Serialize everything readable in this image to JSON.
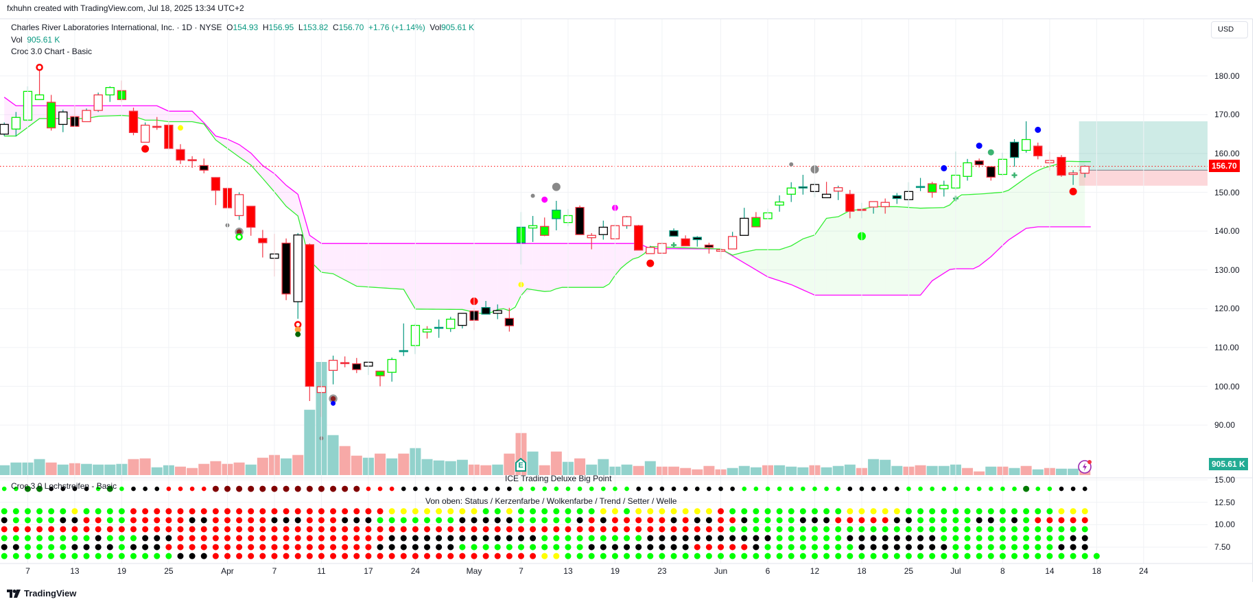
{
  "attribution": "fxhuhn created with TradingView.com, Jul 18, 2025 13:34 UTC+2",
  "legend": {
    "symbol": "Charles River Laboratories International, Inc. · 1D · NYSE",
    "o_label": "O",
    "o": "154.93",
    "h_label": "H",
    "h": "156.95",
    "l_label": "L",
    "l": "153.82",
    "c_label": "C",
    "c": "156.70",
    "change": "+1.76 (+1.14%)",
    "vol_label": "Vol",
    "vol": "905.61 K"
  },
  "legend_vol": {
    "label": "Vol",
    "value": "905.61 K"
  },
  "indicator_main": "Croc 3.0 Chart - Basic",
  "currency": "USD",
  "last_price_badge": "156.70",
  "volume_badge": "905.61 K",
  "earnings_icon_label": "E",
  "lower_pane": {
    "title": "Croc 3.0 Lochstreifen - Basic",
    "ice_label": "ICE Trading Deluxe Big Point",
    "legend": "Von oben: Status / Kerzenfarbe / Wolkenfarbe / Trend / Setter / Welle",
    "ticks": [
      {
        "v": 15,
        "label": "15.00"
      },
      {
        "v": 12.5,
        "label": "12.50"
      },
      {
        "v": 10,
        "label": "10.00"
      },
      {
        "v": 7.5,
        "label": "7.50"
      }
    ],
    "row_levels": [
      14.0,
      11.5,
      10.5,
      9.5,
      8.5,
      7.5,
      6.5
    ],
    "rows": [
      "GGDDKKKKGDGKKKRRRRMMMMMMMMMMMMMRRRKKKKKKKKKKGGGGGGGGGGKKKKKKKKKGGGGGGGGGKKKKKGGGGGGGGGGDGGKKK",
      "GGGGGGYGGGGRRRRRRRRRRRRRRRRRRRRRRYYYYYYYYGGYGGGGGGGYYGYYYYYYYRGGGGGGGGGGYYYYYGGGGGGGGGGGGGYYY",
      "KGGGGKKRRGGRRRRRKKRRRRRKKKRRRKKKGGGGGGGKKKKKGGGGGKRKRRRRRKRKKRRKGGGGKKKRRRRRKKGGGGGKKGKGRRRRR",
      "RRRRRRRRRRRRRRRRRRRRRRRRRRRRRRRRRRRRRRRRRRRRRRRRRRRRRRRRRRRRRRGGGGGGGGGGGGGGGGGGGGGGGGGGGGGGG",
      "GGGGGGGGKGGGKKKRRRRRRRRRRRRRRRRRRKKKKKKKKKKKKKGGGGGGGGGKKKKKKKKKKKGGGGGGKKKKKKKKGGGGGGGGGGGKK",
      "KKGGGGKKKKGKKKRRRRRRRRRRRRRRRRRRKKKKKKKGGGGGGGGGGGKKKKKKKKKRRRRRKGGGGGGGGKKKKKKKKGGGGGGGGGKKK",
      "GGGGGGGGGGGGGGGKKKRRRRRRRRRRRRRRRRRRRRRRRRRRRRYYGGGGGGGGGGGGGGGGGGGGGGGGGGGGGGGGGGGGGGGGGGGGGG"
    ]
  },
  "footer": {
    "brand": "TradingView"
  },
  "colors": {
    "up": "#089981",
    "down": "#f23645",
    "lime": "#00ff00",
    "red": "#ff0000",
    "cloud_upper": "#ff00ff",
    "cloud_lower": "#33ee33",
    "vol_up": "#92d2cc",
    "vol_down": "#f7a9a7",
    "volume_badge": "#22ab94",
    "price_badge": "#ff0000"
  },
  "chart_data": {
    "type": "candlestick",
    "symbol": "CRL",
    "price_ticks": [
      90,
      100,
      110,
      120,
      130,
      140,
      150,
      160,
      170,
      180
    ],
    "last_price": 156.7,
    "x_labels": [
      {
        "label": "7",
        "i": 2
      },
      {
        "label": "13",
        "i": 6
      },
      {
        "label": "19",
        "i": 10
      },
      {
        "label": "25",
        "i": 14
      },
      {
        "label": "Apr",
        "i": 19
      },
      {
        "label": "7",
        "i": 23
      },
      {
        "label": "11",
        "i": 27
      },
      {
        "label": "17",
        "i": 31
      },
      {
        "label": "24",
        "i": 35
      },
      {
        "label": "May",
        "i": 40
      },
      {
        "label": "7",
        "i": 44
      },
      {
        "label": "13",
        "i": 48
      },
      {
        "label": "19",
        "i": 52
      },
      {
        "label": "23",
        "i": 56
      },
      {
        "label": "Jun",
        "i": 61
      },
      {
        "label": "6",
        "i": 65
      },
      {
        "label": "12",
        "i": 69
      },
      {
        "label": "18",
        "i": 73
      },
      {
        "label": "25",
        "i": 77
      },
      {
        "label": "Jul",
        "i": 81
      },
      {
        "label": "8",
        "i": 85
      },
      {
        "label": "14",
        "i": 89
      },
      {
        "label": "18",
        "i": 93
      },
      {
        "label": "24",
        "i": 97
      }
    ],
    "candles_ohlc_style": [
      [
        165.0,
        168.0,
        164.5,
        167.5,
        "WK"
      ],
      [
        166.3,
        170.7,
        164.4,
        169.3,
        "WG"
      ],
      [
        168.6,
        177.3,
        168.2,
        176.0,
        "WG"
      ],
      [
        175.1,
        181.6,
        173.9,
        173.9,
        "WG"
      ],
      [
        173.2,
        175.1,
        165.9,
        166.6,
        "GR"
      ],
      [
        167.5,
        171.3,
        165.5,
        170.7,
        "WK"
      ],
      [
        169.5,
        172.2,
        167.0,
        167.0,
        "KR"
      ],
      [
        168.2,
        171.6,
        168.2,
        171.1,
        "WR"
      ],
      [
        171.1,
        175.7,
        170.7,
        175.1,
        "WR"
      ],
      [
        175.1,
        177.3,
        173.3,
        177.0,
        "WG"
      ],
      [
        176.2,
        178.8,
        173.3,
        173.9,
        "GR"
      ],
      [
        170.9,
        171.8,
        164.7,
        165.4,
        "RR"
      ],
      [
        162.9,
        168.0,
        162.9,
        167.3,
        "WR"
      ],
      [
        167.0,
        169.4,
        166.1,
        166.9,
        "RR"
      ],
      [
        167.3,
        168.0,
        161.0,
        161.3,
        "RR"
      ],
      [
        161.0,
        162.4,
        157.3,
        158.3,
        "RR"
      ],
      [
        158.4,
        159.3,
        156.3,
        158.3,
        "RR"
      ],
      [
        156.9,
        158.7,
        154.9,
        155.7,
        "KR"
      ],
      [
        153.8,
        153.9,
        146.7,
        150.5,
        "RR"
      ],
      [
        151.0,
        151.3,
        146.0,
        146.0,
        "RR"
      ],
      [
        144.0,
        150.0,
        142.9,
        149.4,
        "WR"
      ],
      [
        146.4,
        146.4,
        138.8,
        141.0,
        "RR"
      ],
      [
        138.1,
        140.3,
        133.2,
        137.0,
        "RR"
      ],
      [
        134.1,
        139.3,
        128.3,
        133.0,
        "WK"
      ],
      [
        136.9,
        138.1,
        122.2,
        123.8,
        "KR"
      ],
      [
        121.8,
        139.5,
        117.4,
        139.0,
        "WK"
      ],
      [
        136.5,
        136.8,
        96.2,
        100.0,
        "RR"
      ],
      [
        99.9,
        101.5,
        92.1,
        98.4,
        "WR"
      ],
      [
        104.1,
        107.9,
        100.5,
        106.7,
        "WR"
      ],
      [
        106.1,
        107.7,
        104.9,
        106.0,
        "RR"
      ],
      [
        105.8,
        107.3,
        103.4,
        104.3,
        "KR"
      ],
      [
        105.2,
        106.4,
        102.9,
        106.2,
        "WK"
      ],
      [
        103.9,
        103.9,
        100.0,
        102.7,
        "GR"
      ],
      [
        103.6,
        107.4,
        101.2,
        106.9,
        "WG"
      ],
      [
        109.1,
        116.2,
        107.8,
        109.2,
        "TT"
      ],
      [
        110.5,
        116.2,
        108.3,
        115.7,
        "WG"
      ],
      [
        114.7,
        115.5,
        112.3,
        114.0,
        "WG"
      ],
      [
        115.1,
        117.2,
        112.5,
        115.2,
        "TT"
      ],
      [
        114.9,
        117.9,
        114.0,
        117.3,
        "WG"
      ],
      [
        115.7,
        118.8,
        114.9,
        118.8,
        "WK"
      ],
      [
        119.4,
        120.2,
        114.5,
        117.0,
        "KR"
      ],
      [
        118.6,
        122.0,
        118.6,
        120.3,
        "KT"
      ],
      [
        118.8,
        121.1,
        117.3,
        119.5,
        "WK"
      ],
      [
        117.5,
        120.2,
        114.1,
        115.6,
        "KR"
      ],
      [
        137.0,
        144.9,
        131.4,
        141.0,
        "GT"
      ],
      [
        140.8,
        143.9,
        137.2,
        141.4,
        "WG"
      ],
      [
        141.2,
        143.5,
        138.7,
        138.9,
        "GR"
      ],
      [
        143.2,
        147.8,
        140.2,
        145.4,
        "GT"
      ],
      [
        142.2,
        145.7,
        141.3,
        144.0,
        "WG"
      ],
      [
        146.1,
        146.6,
        139.1,
        139.1,
        "KR"
      ],
      [
        138.9,
        139.5,
        135.3,
        138.3,
        "WR"
      ],
      [
        139.1,
        142.7,
        137.8,
        141.0,
        "WK"
      ],
      [
        138.0,
        141.7,
        138.0,
        141.4,
        "WR"
      ],
      [
        141.4,
        143.9,
        140.6,
        143.7,
        "WR"
      ],
      [
        141.4,
        141.6,
        135.1,
        135.1,
        "RR"
      ],
      [
        134.2,
        136.2,
        134.2,
        135.8,
        "WR"
      ],
      [
        134.3,
        137.1,
        134.3,
        136.8,
        "WR"
      ],
      [
        138.7,
        140.7,
        138.7,
        140.1,
        "KT"
      ],
      [
        138.0,
        138.9,
        136.2,
        136.2,
        "RR"
      ],
      [
        137.8,
        138.7,
        136.0,
        138.4,
        "KT"
      ],
      [
        136.4,
        137.0,
        134.2,
        135.8,
        "KR"
      ],
      [
        135.2,
        135.3,
        132.8,
        134.8,
        "WR"
      ],
      [
        135.4,
        139.8,
        135.4,
        138.6,
        "WR"
      ],
      [
        138.9,
        146.0,
        138.9,
        143.3,
        "WK"
      ],
      [
        143.5,
        144.9,
        141.0,
        141.1,
        "GR"
      ],
      [
        143.2,
        145.8,
        143.2,
        144.7,
        "WG"
      ],
      [
        146.7,
        149.2,
        145.0,
        147.5,
        "WG"
      ],
      [
        149.5,
        152.6,
        147.5,
        151.1,
        "WG"
      ],
      [
        151.1,
        154.5,
        149.4,
        151.4,
        "KT"
      ],
      [
        150.2,
        152.7,
        148.7,
        152.0,
        "WK"
      ],
      [
        149.5,
        152.7,
        148.6,
        148.6,
        "WK"
      ],
      [
        150.3,
        151.7,
        148.0,
        151.2,
        "WR"
      ],
      [
        149.5,
        150.6,
        143.3,
        145.1,
        "RR"
      ],
      [
        145.5,
        147.3,
        143.3,
        145.6,
        "RR"
      ],
      [
        146.2,
        147.7,
        144.5,
        147.6,
        "WR"
      ],
      [
        147.4,
        148.4,
        144.5,
        146.3,
        "WR"
      ],
      [
        148.4,
        149.8,
        147.0,
        149.1,
        "KT"
      ],
      [
        148.1,
        152.6,
        146.3,
        150.2,
        "WK"
      ],
      [
        151.4,
        153.7,
        150.3,
        151.5,
        "TT"
      ],
      [
        152.2,
        152.7,
        148.6,
        150.0,
        "GR"
      ],
      [
        150.9,
        153.0,
        148.9,
        151.8,
        "WG"
      ],
      [
        151.1,
        160.5,
        150.6,
        154.4,
        "WG"
      ],
      [
        154.1,
        158.6,
        153.0,
        157.6,
        "WG"
      ],
      [
        158.1,
        158.7,
        156.4,
        157.1,
        "KR"
      ],
      [
        156.6,
        156.6,
        153.0,
        153.9,
        "KR"
      ],
      [
        154.6,
        160.2,
        154.2,
        158.5,
        "WG"
      ],
      [
        159.0,
        163.7,
        156.6,
        162.9,
        "KT"
      ],
      [
        160.8,
        168.3,
        160.2,
        163.6,
        "WG"
      ],
      [
        161.9,
        162.8,
        158.5,
        159.4,
        "RR"
      ],
      [
        158.2,
        160.5,
        155.6,
        157.6,
        "WR"
      ],
      [
        159.0,
        159.6,
        154.0,
        154.4,
        "RR"
      ],
      [
        154.6,
        155.7,
        151.9,
        155.0,
        "WR"
      ],
      [
        154.93,
        156.95,
        153.82,
        156.7,
        "WR"
      ]
    ],
    "volume_k": [
      1393,
      1782,
      1782,
      2269,
      1782,
      1490,
      1685,
      1588,
      1490,
      1490,
      1588,
      2269,
      2367,
      1101,
      1393,
      1198,
      1003,
      1588,
      1977,
      1588,
      1782,
      1490,
      2464,
      2854,
      2367,
      2854,
      9282,
      16071,
      5678,
      4120,
      2756,
      2464,
      3049,
      2367,
      3049,
      3828,
      2269,
      2075,
      1977,
      2172,
      1490,
      1393,
      1490,
      3049,
      5971,
      3341,
      1393,
      3341,
      1880,
      2367,
      1490,
      2269,
      1198,
      1490,
      1295,
      1977,
      1198,
      1198,
      1003,
      808,
      1295,
      808,
      1003,
      1295,
      1101,
      1393,
      1393,
      1198,
      1101,
      1393,
      1101,
      1295,
      1490,
      1003,
      2269,
      2172,
      1295,
      1198,
      1393,
      1295,
      1295,
      1490,
      1003,
      516,
      1198,
      1198,
      1003,
      1295,
      808,
      1003,
      906,
      906,
      905.61
    ],
    "volume_dir": "uuuududuuuudduuddddddudduduuuddududuuuuudduddudduduuuududddddduuuduuuduuuduuudduuuddudududuu",
    "cloud_upper": [
      [
        0,
        174.5
      ],
      [
        1,
        172.3
      ],
      [
        13,
        172.3
      ],
      [
        14,
        170.9
      ],
      [
        16,
        170.9
      ],
      [
        17,
        167.9
      ],
      [
        18,
        164.5
      ],
      [
        19,
        163.7
      ],
      [
        20,
        162.3
      ],
      [
        21,
        160.1
      ],
      [
        22,
        156.9
      ],
      [
        23,
        154.8
      ],
      [
        24,
        151.8
      ],
      [
        25,
        149.5
      ],
      [
        26,
        138.9
      ],
      [
        27,
        136.8
      ],
      [
        54,
        136.8
      ],
      [
        55,
        135.5
      ],
      [
        61,
        135.4
      ],
      [
        65,
        128.2
      ],
      [
        67,
        126.2
      ],
      [
        69,
        123.5
      ],
      [
        78,
        123.5
      ],
      [
        79,
        127.2
      ],
      [
        80.6,
        130.3
      ],
      [
        82.7,
        130.3
      ],
      [
        84,
        133.4
      ],
      [
        85.4,
        137.5
      ],
      [
        87,
        140.7
      ],
      [
        88,
        141.1
      ],
      [
        92,
        141.1
      ]
    ],
    "cloud_lower": [
      [
        0,
        164.5
      ],
      [
        1,
        164.5
      ],
      [
        3,
        169.0
      ],
      [
        7,
        169.0
      ],
      [
        8,
        169.6
      ],
      [
        10,
        169.8
      ],
      [
        11,
        169.6
      ],
      [
        12,
        168.6
      ],
      [
        13,
        168.6
      ],
      [
        14,
        168.2
      ],
      [
        16,
        168.2
      ],
      [
        17,
        167.6
      ],
      [
        18,
        163.5
      ],
      [
        19,
        161.3
      ],
      [
        20,
        159.1
      ],
      [
        21,
        157.0
      ],
      [
        22,
        153.6
      ],
      [
        23,
        150.1
      ],
      [
        24,
        146.4
      ],
      [
        25,
        143.9
      ],
      [
        26,
        132.4
      ],
      [
        27,
        129.4
      ],
      [
        28,
        129.0
      ],
      [
        30,
        125.8
      ],
      [
        34,
        125.0
      ],
      [
        35,
        119.9
      ],
      [
        39,
        119.8
      ],
      [
        40.4,
        118.8
      ],
      [
        41.3,
        118.8
      ],
      [
        42.3,
        120.2
      ],
      [
        43.3,
        119.2
      ],
      [
        44.3,
        125.2
      ],
      [
        46.3,
        124.3
      ],
      [
        47.3,
        125.5
      ],
      [
        51.3,
        125.5
      ],
      [
        52.3,
        129.9
      ],
      [
        53.4,
        132.7
      ],
      [
        54.3,
        133.5
      ],
      [
        55,
        136.0
      ],
      [
        61,
        135.4
      ],
      [
        62,
        133.8
      ],
      [
        63,
        134.6
      ],
      [
        64,
        135.2
      ],
      [
        66,
        135.2
      ],
      [
        67,
        136.2
      ],
      [
        68,
        138.0
      ],
      [
        69,
        139.0
      ],
      [
        70,
        143.3
      ],
      [
        71,
        143.7
      ],
      [
        72,
        145.3
      ],
      [
        73,
        145.6
      ],
      [
        74,
        146.3
      ],
      [
        76,
        146.3
      ],
      [
        78,
        145.9
      ],
      [
        80.3,
        146.1
      ],
      [
        81.3,
        149.3
      ],
      [
        83.3,
        149.6
      ],
      [
        85.3,
        150.1
      ],
      [
        87.3,
        154.4
      ],
      [
        88.3,
        156.1
      ],
      [
        89.3,
        156.9
      ],
      [
        90.3,
        158.0
      ],
      [
        92,
        157.9
      ]
    ],
    "markers": [
      [
        3,
        182.2,
        "red-ring"
      ],
      [
        12,
        161.2,
        "red-dot"
      ],
      [
        15,
        166.6,
        "yellow-dot"
      ],
      [
        19,
        141.5,
        "gray-dot"
      ],
      [
        20,
        139.8,
        "gray-ring-dot"
      ],
      [
        20,
        138.5,
        "green-ring"
      ],
      [
        25,
        115.9,
        "red-ring"
      ],
      [
        25,
        114.6,
        "orange-dot"
      ],
      [
        25,
        113.4,
        "darkgreen-dot"
      ],
      [
        27,
        86.6,
        "gray-dot"
      ],
      [
        28,
        96.8,
        "gray-ring-dot"
      ],
      [
        28,
        95.6,
        "blue-dot-sm"
      ],
      [
        40,
        121.9,
        "red-dot"
      ],
      [
        44,
        126.2,
        "yellow-dot"
      ],
      [
        45,
        149.1,
        "gray-dot"
      ],
      [
        46,
        148.1,
        "magenta-dot"
      ],
      [
        47,
        151.4,
        "gray-dot-lg"
      ],
      [
        52,
        146.0,
        "magenta-dot"
      ],
      [
        55,
        131.7,
        "red-dot"
      ],
      [
        57,
        136.4,
        "plus"
      ],
      [
        67,
        157.2,
        "gray-dot"
      ],
      [
        69,
        155.9,
        "gray-dot-lg"
      ],
      [
        73,
        138.7,
        "green-dot"
      ],
      [
        80,
        156.2,
        "blue-dot"
      ],
      [
        81,
        148.4,
        "plus"
      ],
      [
        83,
        162.0,
        "blue-dot"
      ],
      [
        84,
        160.3,
        "teal-dot"
      ],
      [
        86,
        154.4,
        "plus"
      ],
      [
        88,
        166.1,
        "blue-dot"
      ],
      [
        91,
        150.2,
        "red-dot"
      ]
    ],
    "long_position": {
      "start_i": 91.5,
      "target": 168.3,
      "entry": 155.7,
      "stop": 151.7
    }
  }
}
